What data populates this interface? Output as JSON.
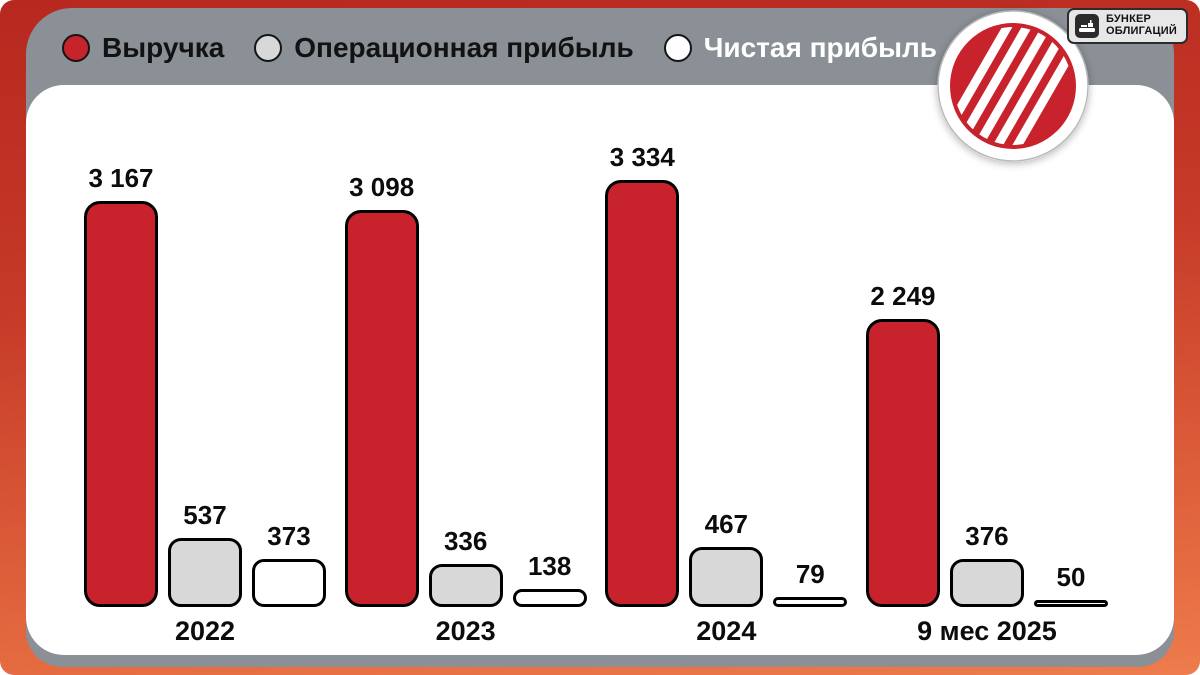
{
  "badge": {
    "line1": "БУНКЕР",
    "line2": "ОБЛИГАЦИЙ"
  },
  "legend": {
    "items": [
      {
        "label": "Выручка",
        "swatch_color": "#c8232c",
        "label_color": "#121212"
      },
      {
        "label": "Операционная прибыль",
        "swatch_color": "#d8d8d8",
        "label_color": "#121212"
      },
      {
        "label": "Чистая прибыль",
        "swatch_color": "#ffffff",
        "label_color": "#ffffff"
      }
    ]
  },
  "chart_data": {
    "type": "bar",
    "title": "",
    "categories": [
      "2022",
      "2023",
      "2024",
      "9 мес 2025"
    ],
    "series": [
      {
        "name": "Выручка",
        "color": "#c8232c",
        "values": [
          3167,
          3098,
          3334,
          2249
        ],
        "labels": [
          "3 167",
          "3 098",
          "3 334",
          "2 249"
        ]
      },
      {
        "name": "Операционная прибыль",
        "color": "#d8d8d8",
        "values": [
          537,
          336,
          467,
          376
        ],
        "labels": [
          "537",
          "336",
          "467",
          "376"
        ]
      },
      {
        "name": "Чистая прибыль",
        "color": "#ffffff",
        "values": [
          373,
          138,
          79,
          50
        ],
        "labels": [
          "373",
          "138",
          "79",
          "50"
        ]
      }
    ],
    "ylim": [
      0,
      3334
    ],
    "grid": false,
    "legend_position": "top"
  },
  "colors": {
    "frame_top": "#b7281f",
    "frame_bottom": "#ee7c4c",
    "card_gray": "#8a9096",
    "panel_white": "#ffffff",
    "bar_outline": "#000000",
    "logo_red": "#c8232c"
  }
}
